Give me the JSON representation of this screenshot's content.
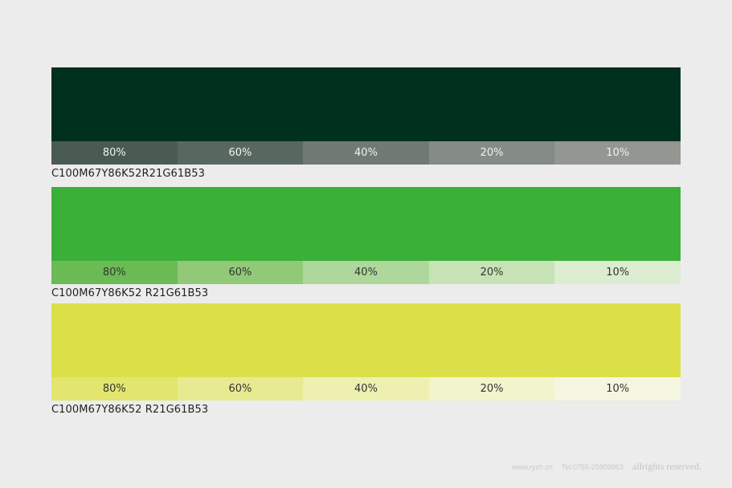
{
  "swatches": [
    {
      "main_color": "#00311f",
      "tints": [
        {
          "label": "80%",
          "color": "#4a5c52"
        },
        {
          "label": "60%",
          "color": "#59685f"
        },
        {
          "label": "40%",
          "color": "#6f7a72"
        },
        {
          "label": "20%",
          "color": "#858b85"
        },
        {
          "label": "10%",
          "color": "#939691"
        }
      ],
      "code": "C100M67Y86K52R21G61B53"
    },
    {
      "main_color": "#3ab039",
      "tints": [
        {
          "label": "80%",
          "color": "#6bbb55"
        },
        {
          "label": "60%",
          "color": "#92c978"
        },
        {
          "label": "40%",
          "color": "#aed79b"
        },
        {
          "label": "20%",
          "color": "#c7e3b5"
        },
        {
          "label": "10%",
          "color": "#dcecd0"
        }
      ],
      "code": "C100M67Y86K52 R21G61B53"
    },
    {
      "main_color": "#dbe048",
      "tints": [
        {
          "label": "80%",
          "color": "#e2e66f"
        },
        {
          "label": "60%",
          "color": "#e8ea92"
        },
        {
          "label": "40%",
          "color": "#eef0b2"
        },
        {
          "label": "20%",
          "color": "#f2f4cd"
        },
        {
          "label": "10%",
          "color": "#f5f6e0"
        }
      ],
      "code": "C100M67Y86K52 R21G61B53"
    }
  ],
  "footer": {
    "site": "www.ryzh.cn",
    "tel": "Tel:0755-25909863",
    "rights": "allrights reserved."
  }
}
